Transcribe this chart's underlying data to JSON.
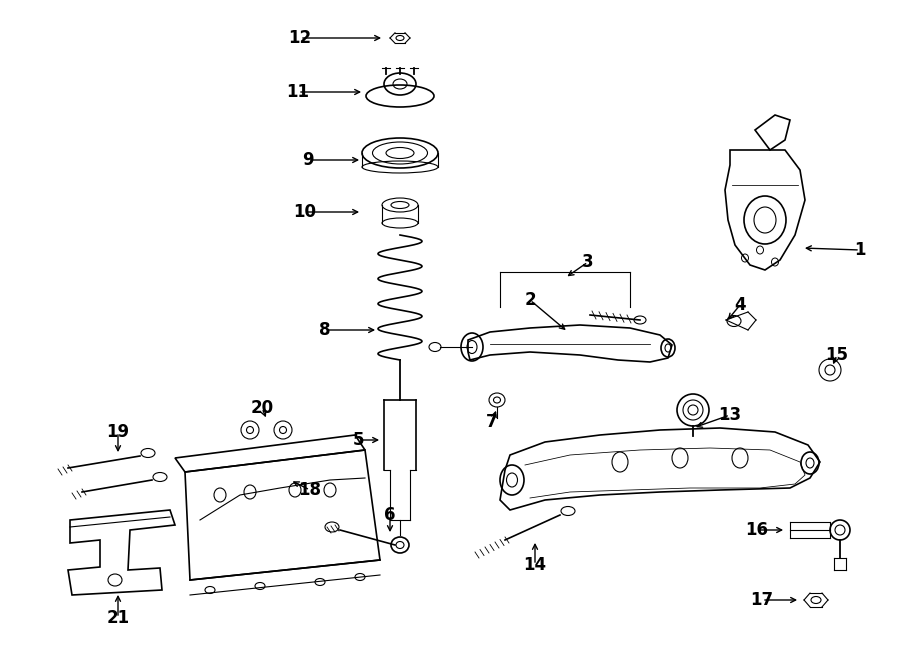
{
  "bg_color": "#ffffff",
  "line_color": "#000000",
  "fig_width": 9.0,
  "fig_height": 6.61,
  "font_size": 12
}
